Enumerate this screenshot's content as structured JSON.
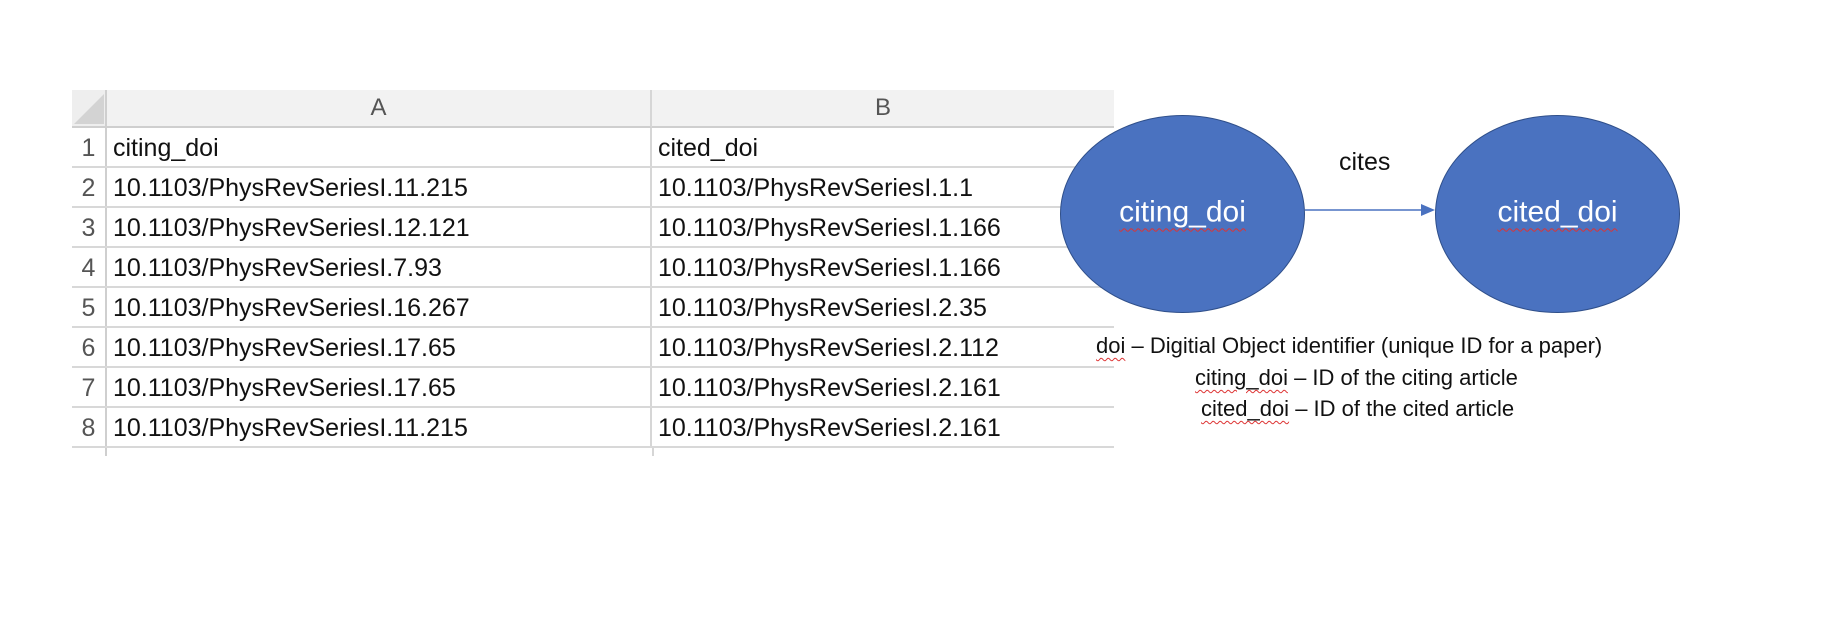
{
  "spreadsheet": {
    "columns": [
      "A",
      "B"
    ],
    "rows": [
      {
        "num": "1",
        "a": "citing_doi",
        "b": "cited_doi"
      },
      {
        "num": "2",
        "a": "10.1103/PhysRevSeriesI.11.215",
        "b": "10.1103/PhysRevSeriesI.1.1"
      },
      {
        "num": "3",
        "a": "10.1103/PhysRevSeriesI.12.121",
        "b": "10.1103/PhysRevSeriesI.1.166"
      },
      {
        "num": "4",
        "a": "10.1103/PhysRevSeriesI.7.93",
        "b": "10.1103/PhysRevSeriesI.1.166"
      },
      {
        "num": "5",
        "a": "10.1103/PhysRevSeriesI.16.267",
        "b": "10.1103/PhysRevSeriesI.2.35"
      },
      {
        "num": "6",
        "a": "10.1103/PhysRevSeriesI.17.65",
        "b": "10.1103/PhysRevSeriesI.2.112"
      },
      {
        "num": "7",
        "a": "10.1103/PhysRevSeriesI.17.65",
        "b": "10.1103/PhysRevSeriesI.2.161"
      },
      {
        "num": "8",
        "a": "10.1103/PhysRevSeriesI.11.215",
        "b": "10.1103/PhysRevSeriesI.2.161"
      }
    ]
  },
  "diagram": {
    "source_node": "citing_doi",
    "target_node": "cited_doi",
    "edge_label": "cites",
    "node_color": "#4a72c0",
    "edge_color": "#4a72c0"
  },
  "legend": {
    "line1_term": "doi",
    "line1_rest": " – Digitial Object identifier (unique ID for a paper)",
    "line2_term": "citing_doi",
    "line2_rest": " – ID of the citing article",
    "line3_term": "cited_doi",
    "line3_rest": " – ID of the cited article"
  }
}
